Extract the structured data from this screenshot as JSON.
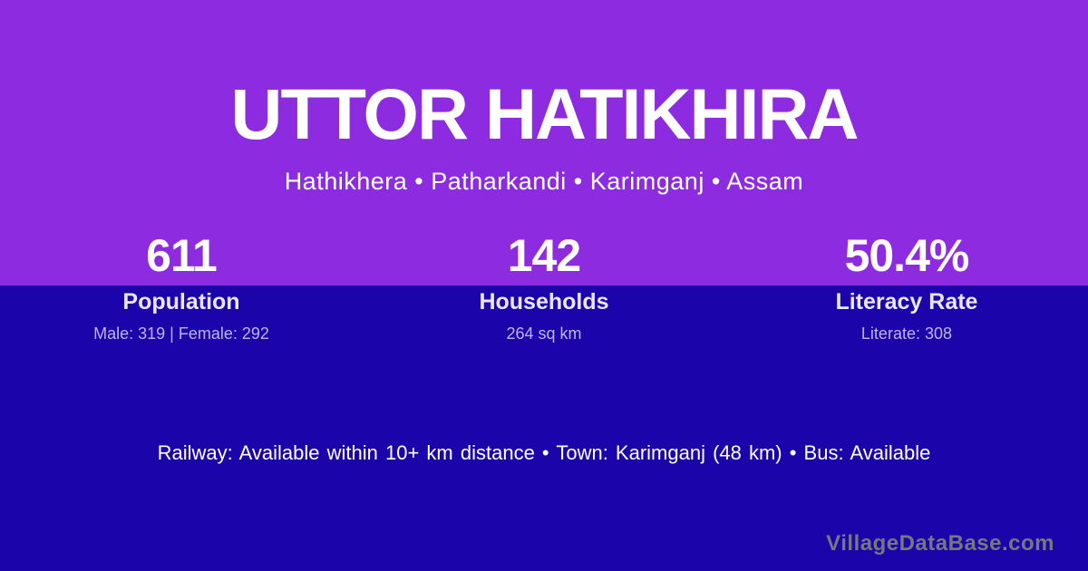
{
  "page": {
    "title": "UTTOR HATIKHIRA",
    "subtitle": "Hathikhera • Patharkandi • Karimganj • Assam"
  },
  "stats": [
    {
      "value": "611",
      "label": "Population",
      "detail": "Male: 319 | Female: 292"
    },
    {
      "value": "142",
      "label": "Households",
      "detail": "264 sq km"
    },
    {
      "value": "50.4%",
      "label": "Literacy Rate",
      "detail": "Literate: 308"
    }
  ],
  "info_line": "Railway: Available within 10+ km distance  •  Town: Karimganj (48 km)  •  Bus: Available",
  "footer": {
    "brand": "VillageDataBase.com"
  },
  "colors": {
    "top_background": "#8C2BE0",
    "bottom_background": "#1B04A9",
    "title_text": "#FFFFFF",
    "stat_label": "#EAE6FA",
    "stat_detail": "#BEB4E6",
    "brand_text": "#77777F"
  }
}
